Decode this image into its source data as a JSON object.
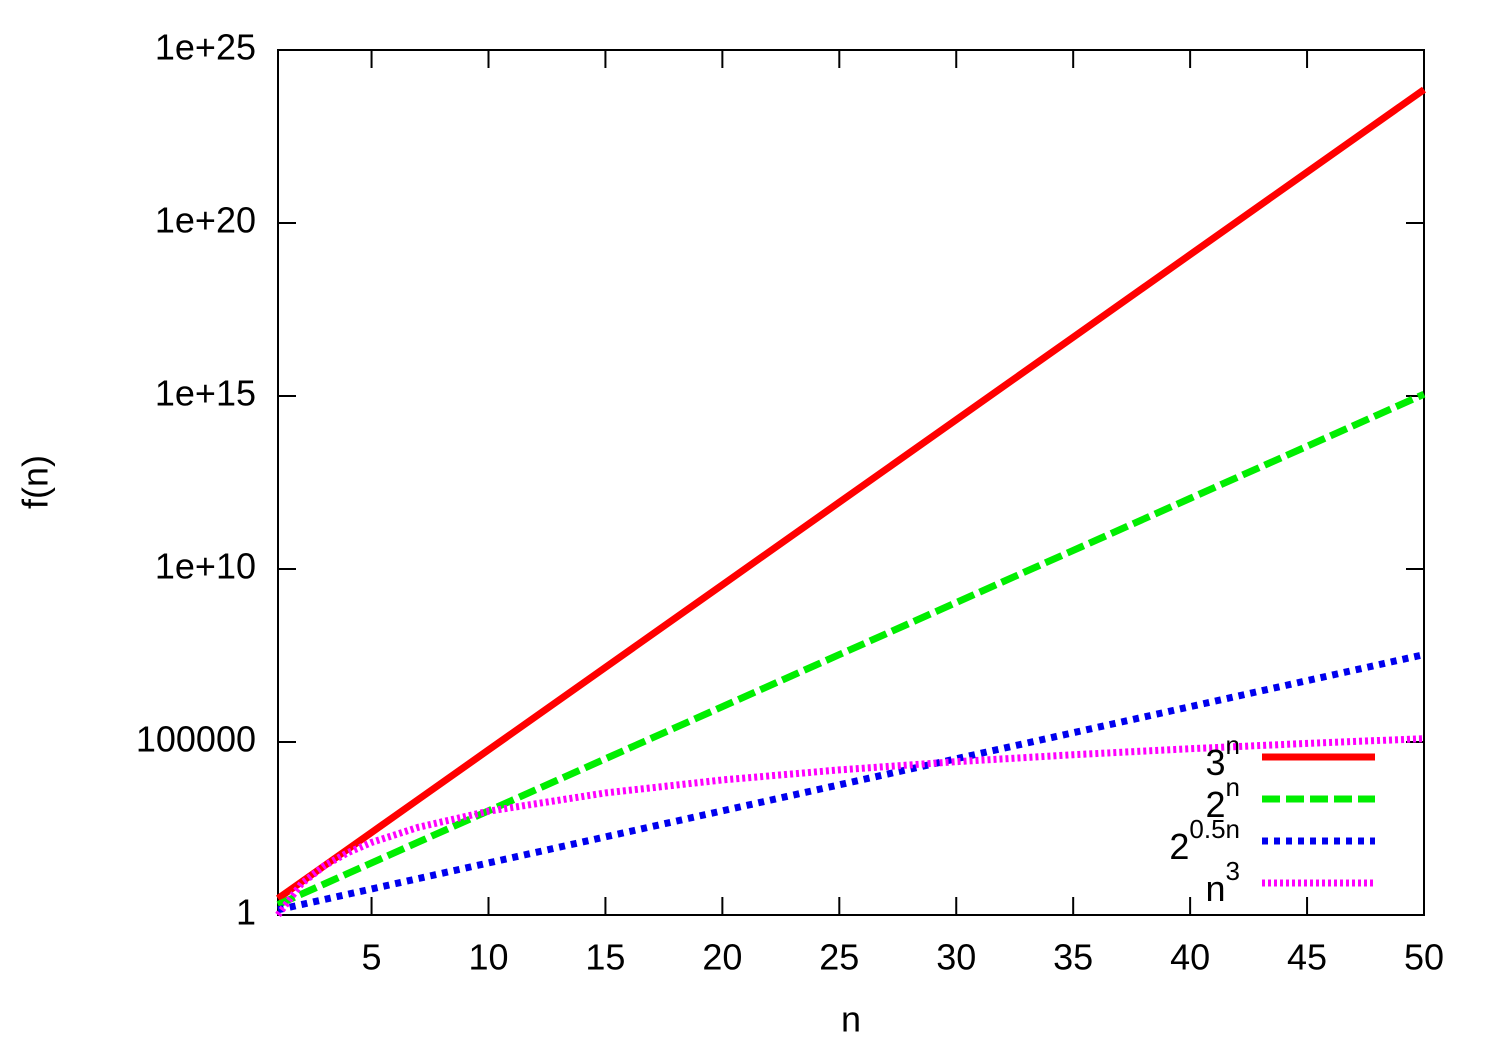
{
  "chart_data": {
    "type": "line",
    "xlabel": "n",
    "ylabel": "f(n)",
    "x": [
      1,
      2,
      3,
      4,
      5,
      7,
      10,
      15,
      20,
      25,
      30,
      35,
      40,
      45,
      50
    ],
    "series": [
      {
        "name": {
          "base": "3",
          "sup": "n"
        },
        "color": "#ff0000",
        "dash": "solid",
        "values": [
          3,
          9,
          27,
          81,
          243,
          2187,
          59049,
          14348907,
          3486784401,
          847288609443,
          205891132094649,
          50031545098999707,
          12157665459056929000,
          2.954312706550833e+21,
          7.178979876918526e+23
        ]
      },
      {
        "name": {
          "base": "2",
          "sup": "n"
        },
        "color": "#00ee00",
        "dash": "dashed",
        "values": [
          2,
          4,
          8,
          16,
          32,
          128,
          1024,
          32768,
          1048576,
          33554432,
          1073741824,
          34359738368,
          1099511627776,
          35184372088832,
          1125899906842624
        ]
      },
      {
        "name": {
          "base": "2",
          "sup": "0.5n"
        },
        "color": "#0000ee",
        "dash": "dotted",
        "values": [
          1.4142,
          2,
          2.8284,
          4,
          5.6569,
          11.314,
          32,
          181.02,
          1024,
          5792.6,
          32768,
          185364,
          1048576,
          5931642,
          33554432
        ]
      },
      {
        "name": {
          "base": "n",
          "sup": "3"
        },
        "color": "#ff00ff",
        "dash": "fine",
        "values": [
          1,
          8,
          27,
          64,
          125,
          343,
          1000,
          3375,
          8000,
          15625,
          27000,
          42875,
          64000,
          91125,
          125000
        ]
      }
    ],
    "xlim": [
      1,
      50
    ],
    "xticks": [
      5,
      10,
      15,
      20,
      25,
      30,
      35,
      40,
      45,
      50
    ],
    "ylim": [
      1,
      1e+25
    ],
    "log_y": true,
    "yticks": [
      1,
      100000,
      {
        "value": 10000000000.0,
        "label": "1e+10"
      },
      {
        "value": 1000000000000000.0,
        "label": "1e+15"
      },
      {
        "value": 1e+20,
        "label": "1e+20"
      },
      {
        "value": 1e+25,
        "label": "1e+25"
      }
    ],
    "grid": false,
    "legend": "bottom right"
  }
}
